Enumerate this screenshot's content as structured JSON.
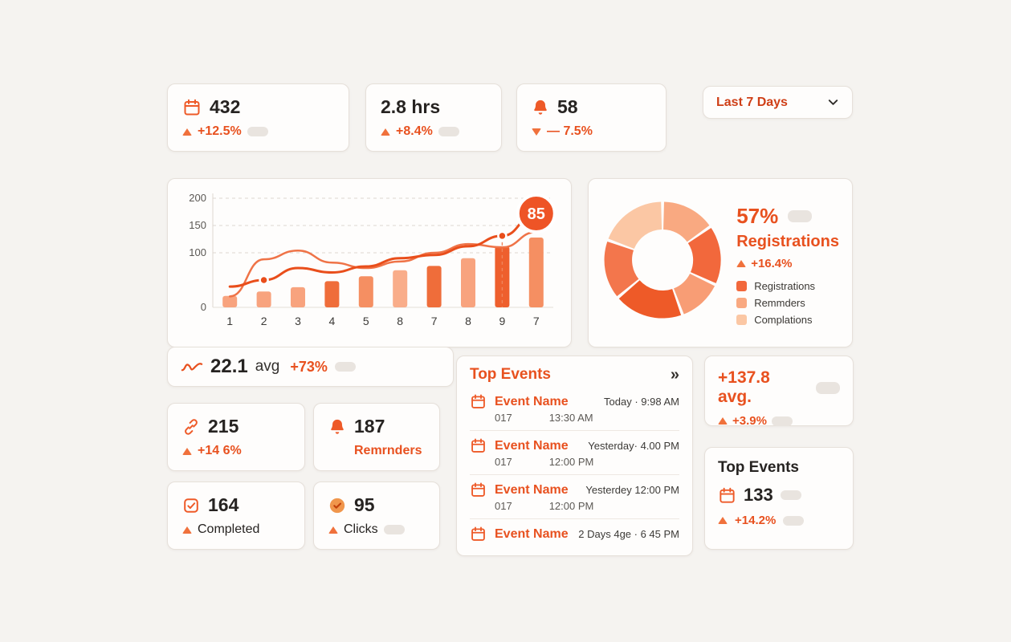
{
  "colors": {
    "accent": "#e8511f",
    "accent_light": "#f8a37e",
    "accent_lighter": "#fbc7a4",
    "background": "#f5f3f0",
    "card": "#fefdfc",
    "pill": "#e9e4df"
  },
  "period_selector": {
    "label": "Last 7 Days"
  },
  "top_stats": [
    {
      "icon": "calendar-icon",
      "value": "432",
      "delta": "+12.5%",
      "direction": "up"
    },
    {
      "icon": "none",
      "value": "2.8 hrs",
      "delta": "+8.4%",
      "direction": "up"
    },
    {
      "icon": "bell-icon",
      "value": "58",
      "delta": "— 7.5%",
      "direction": "down"
    }
  ],
  "chart_data": [
    {
      "type": "bar+line",
      "title": "",
      "categories": [
        "1",
        "2",
        "3",
        "4",
        "5",
        "8",
        "7",
        "8",
        "9",
        "7"
      ],
      "ylim": [
        0,
        200
      ],
      "yticks": [
        0,
        100,
        150,
        200
      ],
      "grid": "dashed-horizontal",
      "bars": {
        "values": [
          21,
          29,
          37,
          48,
          57,
          68,
          76,
          90,
          112,
          128
        ],
        "colors": [
          "#f8a37e",
          "#f8a37e",
          "#f8a37e",
          "#ef6d3a",
          "#f58f62",
          "#f9ad8a",
          "#ef6d3a",
          "#f8a37e",
          "#ee5f2d",
          "#f58f62"
        ]
      },
      "series": [
        {
          "name": "primary-line",
          "color": "#e94e1b",
          "values": [
            38,
            50,
            72,
            64,
            75,
            90,
            96,
            112,
            131,
            172
          ],
          "dots": [
            1,
            8
          ],
          "end_badge": "85"
        },
        {
          "name": "secondary-line",
          "color": "#ef7347",
          "values": [
            20,
            88,
            104,
            82,
            72,
            84,
            100,
            116,
            110,
            138
          ]
        }
      ],
      "vline_index": 8
    },
    {
      "type": "donut",
      "percent": "57%",
      "label": "Registrations",
      "delta": "+16.4%",
      "slices": [
        {
          "value": 55,
          "color": "#f9a981"
        },
        {
          "value": 60,
          "color": "#f2683c"
        },
        {
          "value": 45,
          "color": "#f89d75"
        },
        {
          "value": 70,
          "color": "#ee5a28"
        },
        {
          "value": 60,
          "color": "#f3764c"
        },
        {
          "value": 70,
          "color": "#fbc7a4"
        }
      ],
      "legend": [
        {
          "label": "Registrations",
          "color": "#f2683c"
        },
        {
          "label": "Remmders",
          "color": "#f9a981"
        },
        {
          "label": "Complations",
          "color": "#fbc7a4"
        }
      ]
    }
  ],
  "chart_summary": {
    "value": "22.1",
    "unit": "avg",
    "delta": "+73%"
  },
  "stat_cards": [
    {
      "icon": "link-icon",
      "value": "215",
      "delta": "+14 6%"
    },
    {
      "icon": "bell-icon",
      "value": "187",
      "label": "Remrnders"
    },
    {
      "icon": "checkbox-icon",
      "value": "164",
      "label": "Completed"
    },
    {
      "icon": "check-circle-icon",
      "value": "95",
      "label": "Clicks"
    }
  ],
  "top_events": {
    "title": "Top Events",
    "expand_icon": "»",
    "items": [
      {
        "name": "Event Name",
        "time": "Today · 9:98 AM",
        "id": "017",
        "subtime": "13:30 AM"
      },
      {
        "name": "Event Name",
        "time": "Yesterday· 4.00 PM",
        "id": "017",
        "subtime": "12:00 PM"
      },
      {
        "name": "Event Name",
        "time": "Yesterdey  12:00 PM",
        "id": "017",
        "subtime": "12:00 PM"
      },
      {
        "name": "Event Name",
        "time": "2 Days 4ge · 6 45 PM",
        "id": "",
        "subtime": ""
      }
    ]
  },
  "avg_card": {
    "value": "+137.8 avg.",
    "delta": "+3.9%"
  },
  "small_events_card": {
    "title": "Top Events",
    "value": "133",
    "delta": "+14.2%"
  }
}
